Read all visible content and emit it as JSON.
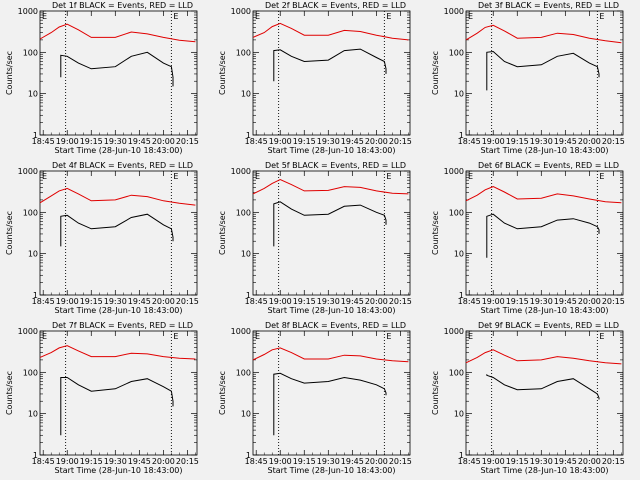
{
  "chart_data": [
    {
      "type": "line",
      "title": "Det 1f BLACK = Events, RED = LLD",
      "ylabel": "Counts/sec",
      "xlabel": "Start Time (28-Jun-10 18:43:00)",
      "yscale": "log",
      "ylim": [
        1,
        1000
      ],
      "xlim": [
        "18:43",
        "20:21"
      ],
      "x_ticks": [
        "18:45",
        "19:00",
        "19:15",
        "19:30",
        "19:45",
        "20:00",
        "20:15"
      ],
      "y_ticks": [
        "1",
        "10",
        "100",
        "1000"
      ],
      "markers": [
        {
          "label": "E",
          "x": "18:43"
        },
        {
          "label": "E",
          "x": "20:05"
        }
      ],
      "vlines": [
        "18:59",
        "20:05"
      ],
      "series": [
        {
          "name": "RED",
          "color": "#e00000",
          "x": [
            "18:43",
            "18:50",
            "18:55",
            "19:00",
            "19:07",
            "19:15",
            "19:30",
            "19:40",
            "19:50",
            "20:00",
            "20:10",
            "20:20"
          ],
          "values": [
            210,
            300,
            410,
            480,
            350,
            230,
            230,
            310,
            280,
            230,
            195,
            180
          ]
        },
        {
          "name": "BLACK",
          "color": "#000000",
          "x": [
            "18:56",
            "18:56",
            "19:00",
            "19:07",
            "19:15",
            "19:30",
            "19:40",
            "19:50",
            "20:00",
            "20:05",
            "20:06",
            "20:06"
          ],
          "values": [
            25,
            85,
            80,
            55,
            40,
            45,
            80,
            100,
            55,
            45,
            25,
            15
          ]
        }
      ]
    },
    {
      "type": "line",
      "title": "Det 2f BLACK = Events, RED = LLD",
      "ylabel": "Counts/sec",
      "xlabel": "Start Time (28-Jun-10 18:43:00)",
      "yscale": "log",
      "ylim": [
        1,
        1000
      ],
      "xlim": [
        "18:43",
        "20:21"
      ],
      "x_ticks": [
        "18:45",
        "19:00",
        "19:15",
        "19:30",
        "19:45",
        "20:00",
        "20:15"
      ],
      "y_ticks": [
        "1",
        "10",
        "100",
        "1000"
      ],
      "markers": [
        {
          "label": "E",
          "x": "18:43"
        },
        {
          "label": "E",
          "x": "20:05"
        }
      ],
      "vlines": [
        "18:59",
        "20:05"
      ],
      "series": [
        {
          "name": "RED",
          "color": "#e00000",
          "x": [
            "18:43",
            "18:50",
            "18:55",
            "19:00",
            "19:07",
            "19:15",
            "19:30",
            "19:40",
            "19:50",
            "20:00",
            "20:10",
            "20:20"
          ],
          "values": [
            230,
            300,
            420,
            500,
            380,
            260,
            260,
            340,
            320,
            260,
            220,
            200
          ]
        },
        {
          "name": "BLACK",
          "color": "#000000",
          "x": [
            "18:56",
            "18:56",
            "19:00",
            "19:07",
            "19:15",
            "19:30",
            "19:40",
            "19:50",
            "20:00",
            "20:05",
            "20:06",
            "20:06"
          ],
          "values": [
            20,
            110,
            115,
            80,
            60,
            65,
            110,
            120,
            75,
            60,
            40,
            30
          ]
        }
      ]
    },
    {
      "type": "line",
      "title": "Det 3f BLACK = Events, RED = LLD",
      "ylabel": "Counts/sec",
      "xlabel": "Start Time (28-Jun-10 18:43:00)",
      "yscale": "log",
      "ylim": [
        1,
        1000
      ],
      "xlim": [
        "18:43",
        "20:21"
      ],
      "x_ticks": [
        "18:45",
        "19:00",
        "19:15",
        "19:30",
        "19:45",
        "20:00",
        "20:15"
      ],
      "y_ticks": [
        "1",
        "10",
        "100",
        "1000"
      ],
      "markers": [
        {
          "label": "E",
          "x": "18:43"
        },
        {
          "label": "E",
          "x": "20:05"
        }
      ],
      "vlines": [
        "18:59",
        "20:05"
      ],
      "series": [
        {
          "name": "RED",
          "color": "#e00000",
          "x": [
            "18:43",
            "18:50",
            "18:55",
            "19:00",
            "19:07",
            "19:15",
            "19:30",
            "19:40",
            "19:50",
            "20:00",
            "20:10",
            "20:20"
          ],
          "values": [
            200,
            290,
            400,
            450,
            330,
            220,
            230,
            290,
            270,
            220,
            190,
            170
          ]
        },
        {
          "name": "BLACK",
          "color": "#000000",
          "x": [
            "18:56",
            "18:56",
            "19:00",
            "19:07",
            "19:15",
            "19:30",
            "19:40",
            "19:50",
            "20:00",
            "20:05",
            "20:06",
            "20:06"
          ],
          "values": [
            12,
            100,
            105,
            60,
            45,
            50,
            80,
            95,
            55,
            45,
            30,
            25
          ]
        }
      ]
    },
    {
      "type": "line",
      "title": "Det 4f BLACK = Events, RED = LLD",
      "ylabel": "Counts/sec",
      "xlabel": "Start Time (28-Jun-10 18:43:00)",
      "yscale": "log",
      "ylim": [
        1,
        1000
      ],
      "xlim": [
        "18:43",
        "20:21"
      ],
      "x_ticks": [
        "18:45",
        "19:00",
        "19:15",
        "19:30",
        "19:45",
        "20:00",
        "20:15"
      ],
      "y_ticks": [
        "1",
        "10",
        "100",
        "1000"
      ],
      "markers": [
        {
          "label": "E",
          "x": "18:43"
        },
        {
          "label": "E",
          "x": "20:05"
        }
      ],
      "vlines": [
        "18:59",
        "20:05"
      ],
      "series": [
        {
          "name": "RED",
          "color": "#e00000",
          "x": [
            "18:43",
            "18:50",
            "18:55",
            "19:00",
            "19:07",
            "19:15",
            "19:30",
            "19:40",
            "19:50",
            "20:00",
            "20:10",
            "20:20"
          ],
          "values": [
            170,
            250,
            330,
            380,
            280,
            190,
            200,
            260,
            240,
            190,
            165,
            150
          ]
        },
        {
          "name": "BLACK",
          "color": "#000000",
          "x": [
            "18:56",
            "18:56",
            "19:00",
            "19:07",
            "19:15",
            "19:30",
            "19:40",
            "19:50",
            "20:00",
            "20:05",
            "20:06",
            "20:06"
          ],
          "values": [
            15,
            80,
            85,
            55,
            40,
            45,
            75,
            90,
            50,
            40,
            25,
            20
          ]
        }
      ]
    },
    {
      "type": "line",
      "title": "Det 5f BLACK = Events, RED = LLD",
      "ylabel": "Counts/sec",
      "xlabel": "Start Time (28-Jun-10 18:43:00)",
      "yscale": "log",
      "ylim": [
        1,
        1000
      ],
      "xlim": [
        "18:43",
        "20:21"
      ],
      "x_ticks": [
        "18:45",
        "19:00",
        "19:15",
        "19:30",
        "19:45",
        "20:00",
        "20:15"
      ],
      "y_ticks": [
        "1",
        "10",
        "100",
        "1000"
      ],
      "markers": [
        {
          "label": "E",
          "x": "18:43"
        },
        {
          "label": "E",
          "x": "20:05"
        }
      ],
      "vlines": [
        "18:59",
        "20:05"
      ],
      "series": [
        {
          "name": "RED",
          "color": "#e00000",
          "x": [
            "18:43",
            "18:50",
            "18:55",
            "19:00",
            "19:07",
            "19:15",
            "19:30",
            "19:40",
            "19:50",
            "20:00",
            "20:10",
            "20:20"
          ],
          "values": [
            280,
            380,
            500,
            620,
            470,
            330,
            340,
            420,
            400,
            330,
            290,
            280
          ]
        },
        {
          "name": "BLACK",
          "color": "#000000",
          "x": [
            "18:56",
            "18:56",
            "19:00",
            "19:07",
            "19:15",
            "19:30",
            "19:40",
            "19:50",
            "20:00",
            "20:05",
            "20:06",
            "20:06"
          ],
          "values": [
            15,
            160,
            180,
            120,
            85,
            90,
            140,
            150,
            100,
            85,
            65,
            50
          ]
        }
      ]
    },
    {
      "type": "line",
      "title": "Det 6f BLACK = Events, RED = LLD",
      "ylabel": "Counts/sec",
      "xlabel": "Start Time (28-Jun-10 18:43:00)",
      "yscale": "log",
      "ylim": [
        1,
        1000
      ],
      "xlim": [
        "18:43",
        "20:21"
      ],
      "x_ticks": [
        "18:45",
        "19:00",
        "19:15",
        "19:30",
        "19:45",
        "20:00",
        "20:15"
      ],
      "y_ticks": [
        "1",
        "10",
        "100",
        "1000"
      ],
      "markers": [
        {
          "label": "E",
          "x": "18:43"
        },
        {
          "label": "E",
          "x": "20:05"
        }
      ],
      "vlines": [
        "18:59",
        "20:05"
      ],
      "series": [
        {
          "name": "RED",
          "color": "#e00000",
          "x": [
            "18:43",
            "18:50",
            "18:55",
            "19:00",
            "19:07",
            "19:15",
            "19:30",
            "19:40",
            "19:50",
            "20:00",
            "20:10",
            "20:20"
          ],
          "values": [
            190,
            260,
            350,
            420,
            310,
            210,
            220,
            280,
            250,
            210,
            180,
            170
          ]
        },
        {
          "name": "BLACK",
          "color": "#000000",
          "x": [
            "18:56",
            "18:56",
            "19:00",
            "19:07",
            "19:15",
            "19:30",
            "19:40",
            "19:50",
            "20:00",
            "20:05",
            "20:06",
            "20:06"
          ],
          "values": [
            8,
            80,
            90,
            55,
            40,
            45,
            65,
            70,
            55,
            45,
            38,
            30
          ]
        }
      ]
    },
    {
      "type": "line",
      "title": "Det 7f BLACK = Events, RED = LLD",
      "ylabel": "Counts/sec",
      "xlabel": "Start Time (28-Jun-10 18:43:00)",
      "yscale": "log",
      "ylim": [
        1,
        1000
      ],
      "xlim": [
        "18:43",
        "20:21"
      ],
      "x_ticks": [
        "18:45",
        "19:00",
        "19:15",
        "19:30",
        "19:45",
        "20:00",
        "20:15"
      ],
      "y_ticks": [
        "1",
        "10",
        "100",
        "1000"
      ],
      "markers": [
        {
          "label": "E",
          "x": "18:43"
        },
        {
          "label": "E",
          "x": "20:05"
        }
      ],
      "vlines": [
        "18:59",
        "20:05"
      ],
      "series": [
        {
          "name": "RED",
          "color": "#e00000",
          "x": [
            "18:43",
            "18:50",
            "18:55",
            "19:00",
            "19:07",
            "19:15",
            "19:30",
            "19:40",
            "19:50",
            "20:00",
            "20:10",
            "20:20"
          ],
          "values": [
            230,
            300,
            390,
            440,
            330,
            240,
            240,
            290,
            280,
            240,
            220,
            210
          ]
        },
        {
          "name": "BLACK",
          "color": "#000000",
          "x": [
            "18:56",
            "18:56",
            "19:00",
            "19:07",
            "19:15",
            "19:30",
            "19:40",
            "19:50",
            "20:00",
            "20:05",
            "20:06",
            "20:06"
          ],
          "values": [
            3,
            75,
            75,
            50,
            35,
            40,
            60,
            70,
            45,
            35,
            20,
            15
          ]
        }
      ]
    },
    {
      "type": "line",
      "title": "Det 8f BLACK = Events, RED = LLD",
      "ylabel": "Counts/sec",
      "xlabel": "Start Time (28-Jun-10 18:43:00)",
      "yscale": "log",
      "ylim": [
        1,
        1000
      ],
      "xlim": [
        "18:43",
        "20:21"
      ],
      "x_ticks": [
        "18:45",
        "19:00",
        "19:15",
        "19:30",
        "19:45",
        "20:00",
        "20:15"
      ],
      "y_ticks": [
        "1",
        "10",
        "100",
        "1000"
      ],
      "markers": [
        {
          "label": "E",
          "x": "18:43"
        },
        {
          "label": "E",
          "x": "20:05"
        }
      ],
      "vlines": [
        "18:59",
        "20:05"
      ],
      "series": [
        {
          "name": "RED",
          "color": "#e00000",
          "x": [
            "18:43",
            "18:50",
            "18:55",
            "19:00",
            "19:07",
            "19:15",
            "19:30",
            "19:40",
            "19:50",
            "20:00",
            "20:10",
            "20:20"
          ],
          "values": [
            200,
            270,
            350,
            390,
            300,
            210,
            210,
            260,
            250,
            210,
            190,
            180
          ]
        },
        {
          "name": "BLACK",
          "color": "#000000",
          "x": [
            "18:56",
            "18:56",
            "19:00",
            "19:07",
            "19:15",
            "19:30",
            "19:40",
            "19:50",
            "20:00",
            "20:05",
            "20:06",
            "20:06"
          ],
          "values": [
            3,
            90,
            95,
            70,
            55,
            60,
            75,
            65,
            50,
            40,
            32,
            28
          ]
        }
      ]
    },
    {
      "type": "line",
      "title": "Det 9f BLACK = Events, RED = LLD",
      "ylabel": "Counts/sec",
      "xlabel": "Start Time (28-Jun-10 18:43:00)",
      "yscale": "log",
      "ylim": [
        1,
        1000
      ],
      "xlim": [
        "18:43",
        "20:21"
      ],
      "x_ticks": [
        "18:45",
        "19:00",
        "19:15",
        "19:30",
        "19:45",
        "20:00",
        "20:15"
      ],
      "y_ticks": [
        "1",
        "10",
        "100",
        "1000"
      ],
      "markers": [
        {
          "label": "E",
          "x": "18:43"
        },
        {
          "label": "E",
          "x": "20:05"
        }
      ],
      "vlines": [
        "18:59",
        "20:05"
      ],
      "series": [
        {
          "name": "RED",
          "color": "#e00000",
          "x": [
            "18:43",
            "18:50",
            "18:55",
            "19:00",
            "19:07",
            "19:15",
            "19:30",
            "19:40",
            "19:50",
            "20:00",
            "20:10",
            "20:20"
          ],
          "values": [
            170,
            230,
            300,
            350,
            260,
            190,
            200,
            240,
            220,
            190,
            170,
            160
          ]
        },
        {
          "name": "BLACK",
          "color": "#000000",
          "x": [
            "18:56",
            "18:56",
            "19:00",
            "19:07",
            "19:15",
            "19:30",
            "19:40",
            "19:50",
            "20:00",
            "20:05",
            "20:06",
            "20:06"
          ],
          "values": [
            90,
            85,
            75,
            50,
            38,
            40,
            60,
            70,
            40,
            30,
            24,
            22
          ]
        }
      ]
    }
  ]
}
